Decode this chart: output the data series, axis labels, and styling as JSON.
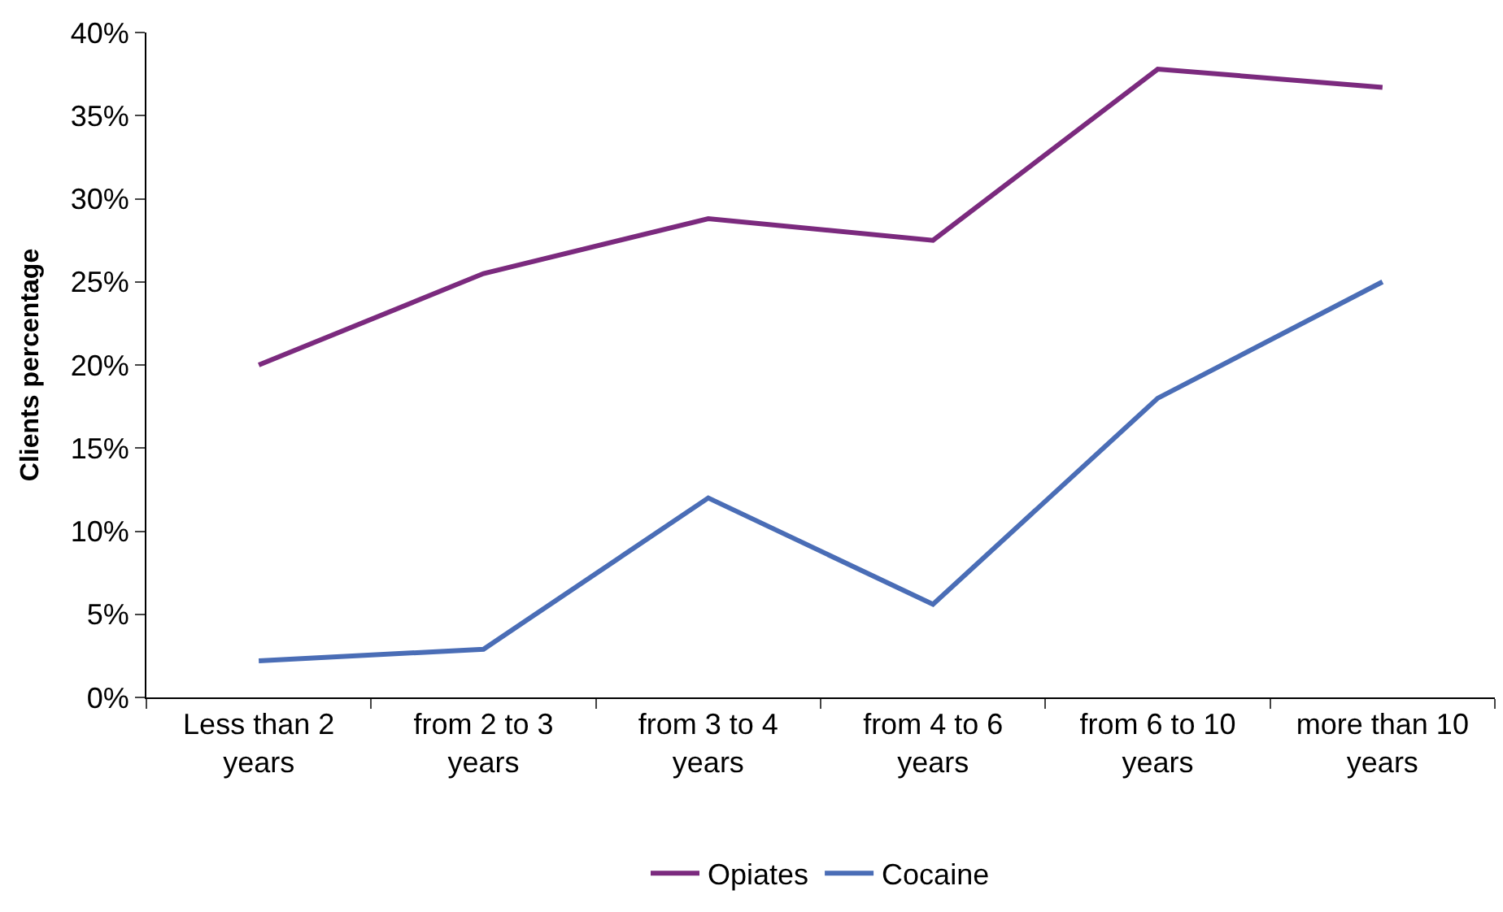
{
  "chart_data": {
    "type": "line",
    "ylabel": "Clients percentage",
    "categories": [
      "Less than 2 years",
      "from 2 to 3 years",
      "from 3 to 4 years",
      "from 4 to 6 years",
      "from 6 to 10 years",
      "more than 10 years"
    ],
    "series": [
      {
        "name": "Opiates",
        "color": "#7b2a7e",
        "values": [
          20.0,
          25.5,
          28.8,
          27.5,
          37.8,
          36.7
        ]
      },
      {
        "name": "Cocaine",
        "color": "#4a6db6",
        "values": [
          2.2,
          2.9,
          12.0,
          5.6,
          18.0,
          25.0
        ]
      }
    ],
    "ylim": [
      0,
      40
    ],
    "yticks": [
      {
        "value": 0,
        "label": "0%"
      },
      {
        "value": 5,
        "label": "5%"
      },
      {
        "value": 10,
        "label": "10%"
      },
      {
        "value": 15,
        "label": "15%"
      },
      {
        "value": 20,
        "label": "20%"
      },
      {
        "value": 25,
        "label": "25%"
      },
      {
        "value": 30,
        "label": "30%"
      },
      {
        "value": 35,
        "label": "35%"
      },
      {
        "value": 40,
        "label": "40%"
      }
    ],
    "grid": false,
    "legend": "bottom",
    "marker": "none",
    "line_style": "solid"
  }
}
